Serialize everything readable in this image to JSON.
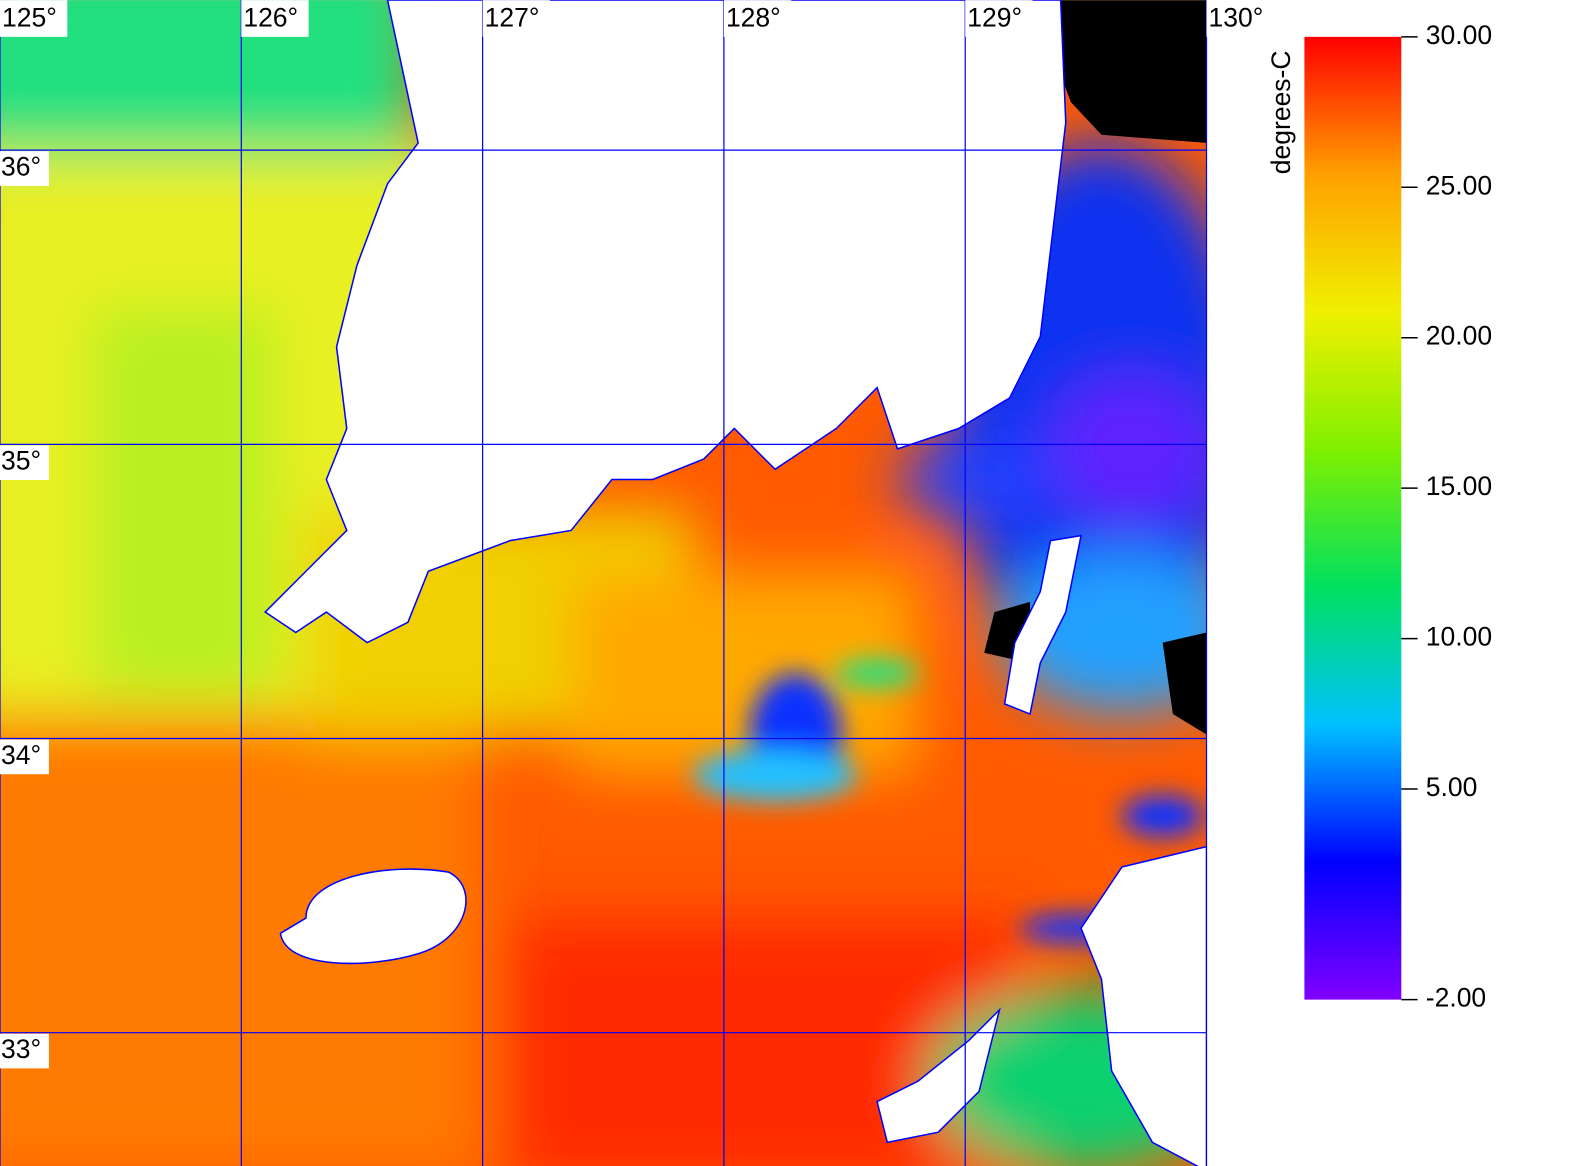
{
  "map": {
    "lonlim": [
      125,
      130
    ],
    "latlim": [
      32.53,
      36.51
    ],
    "lon_ticks": [
      {
        "value": 125,
        "label": "125°"
      },
      {
        "value": 126,
        "label": "126°"
      },
      {
        "value": 127,
        "label": "127°"
      },
      {
        "value": 128,
        "label": "128°"
      },
      {
        "value": 129,
        "label": "129°"
      },
      {
        "value": 130,
        "label": "130°"
      }
    ],
    "lat_ticks": [
      {
        "value": 36,
        "label": "36°"
      },
      {
        "value": 35,
        "label": "35°"
      },
      {
        "value": 34,
        "label": "34°"
      },
      {
        "value": 33,
        "label": "33°"
      }
    ],
    "grid_color": "#0000ff"
  },
  "colorbar": {
    "label": "degrees-C",
    "lim": [
      -2,
      30
    ],
    "ticks": [
      {
        "value": 30,
        "label": "30.00"
      },
      {
        "value": 25,
        "label": "25.00"
      },
      {
        "value": 20,
        "label": "20.00"
      },
      {
        "value": 15,
        "label": "15.00"
      },
      {
        "value": 10,
        "label": "10.00"
      },
      {
        "value": 5,
        "label": "5.00"
      },
      {
        "value": -2,
        "label": "-2.00"
      }
    ],
    "colors": [
      "#8000ff",
      "#0000ff",
      "#00c0ff",
      "#00e060",
      "#80f000",
      "#f0f000",
      "#ffa000",
      "#ff0000"
    ]
  }
}
